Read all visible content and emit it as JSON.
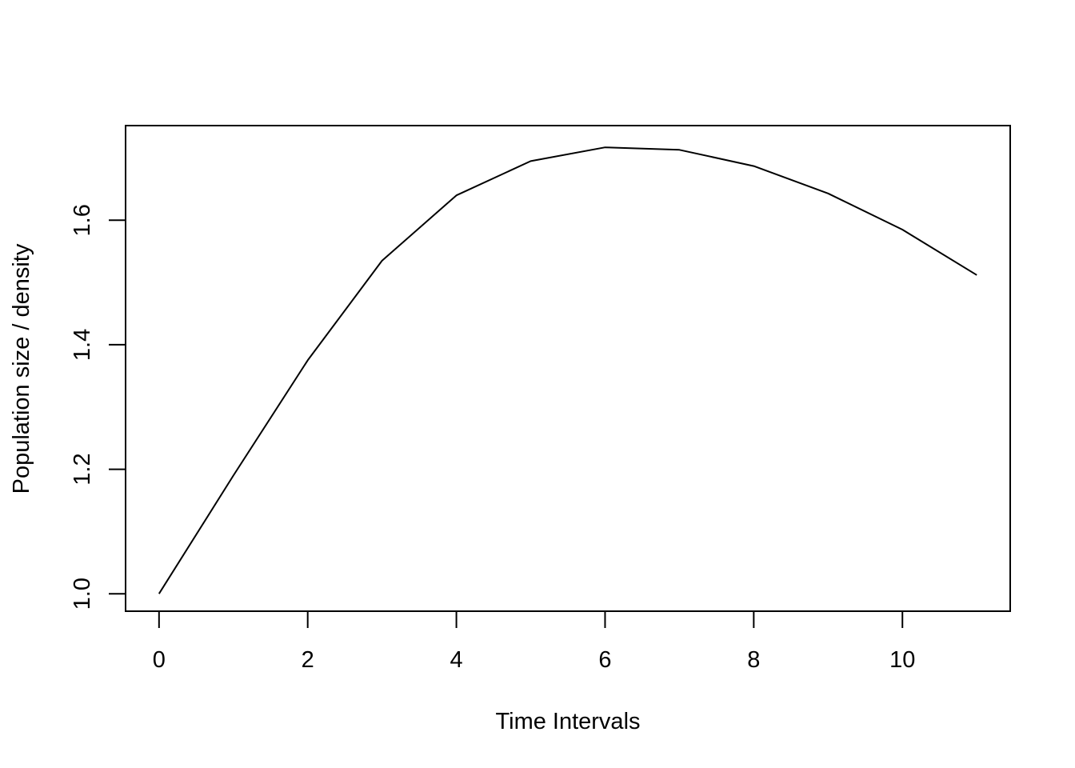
{
  "chart_data": {
    "type": "line",
    "title": "",
    "xlabel": "Time Intervals",
    "ylabel": "Population size / density",
    "x": [
      0,
      1,
      2,
      3,
      4,
      5,
      6,
      7,
      8,
      9,
      10,
      11
    ],
    "series": [
      {
        "values": [
          1.0,
          1.19,
          1.375,
          1.535,
          1.64,
          1.695,
          1.717,
          1.713,
          1.687,
          1.643,
          1.585,
          1.512
        ]
      }
    ],
    "xlim": [
      -0.45,
      11.45
    ],
    "ylim": [
      0.972,
      1.752
    ],
    "x_ticks": [
      0,
      2,
      4,
      6,
      8,
      10
    ],
    "x_tick_labels": [
      "0",
      "2",
      "4",
      "6",
      "8",
      "10"
    ],
    "y_ticks": [
      1.0,
      1.2,
      1.4,
      1.6
    ],
    "y_tick_labels": [
      "1.0",
      "1.2",
      "1.4",
      "1.6"
    ],
    "grid": false,
    "legend": "none",
    "colors": {
      "line": "#000000",
      "axis": "#000000",
      "background": "#ffffff"
    }
  }
}
